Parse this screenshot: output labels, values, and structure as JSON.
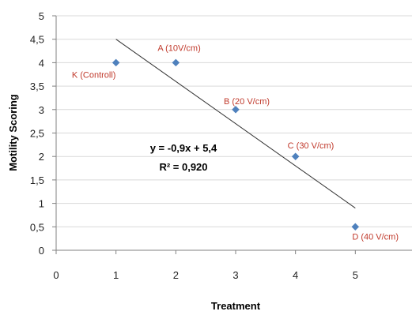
{
  "chart_data": {
    "type": "scatter",
    "xlabel": "Treatment",
    "ylabel": "Motility Scoring",
    "xlim": [
      0,
      6
    ],
    "ylim": [
      0,
      5
    ],
    "x_ticks": [
      "0",
      "1",
      "2",
      "3",
      "4",
      "5"
    ],
    "y_ticks": [
      "0",
      "0,5",
      "1",
      "1,5",
      "2",
      "2,5",
      "3",
      "3,5",
      "4",
      "4,5",
      "5"
    ],
    "grid": "horizontal",
    "points": [
      {
        "x": 1,
        "y": 4.0,
        "label": "K (Controll)"
      },
      {
        "x": 2,
        "y": 4.0,
        "label": "A (10V/cm)"
      },
      {
        "x": 3,
        "y": 3.0,
        "label": "B (20 V/cm)"
      },
      {
        "x": 4,
        "y": 2.0,
        "label": "C (30 V/cm)"
      },
      {
        "x": 5,
        "y": 0.5,
        "label": "D (40 V/cm)"
      }
    ],
    "trendline": {
      "type": "linear",
      "slope": -0.9,
      "intercept": 5.4,
      "x_range": [
        1,
        5
      ],
      "equation": "y = -0,9x + 5,4",
      "r_squared": "R² = 0,920"
    },
    "colors": {
      "marker": "#4f81bd",
      "point_label": "#c0392b",
      "trendline": "#333333",
      "grid": "#d9d9d9",
      "axis": "#808080"
    }
  }
}
